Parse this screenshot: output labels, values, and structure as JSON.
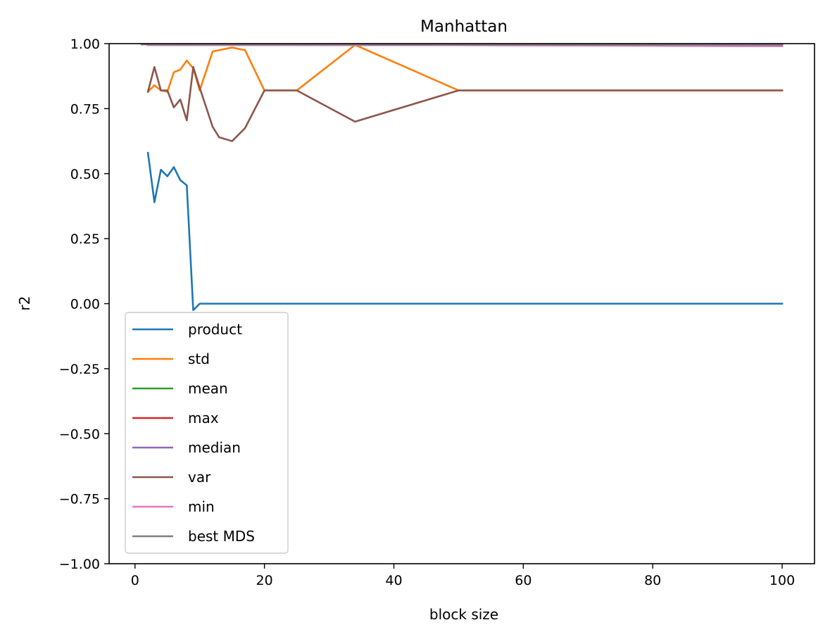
{
  "chart_data": {
    "type": "line",
    "title": "Manhattan",
    "xlabel": "block size",
    "ylabel": "r2",
    "xlim": [
      -4,
      105
    ],
    "ylim": [
      -1.0,
      1.0
    ],
    "xticks": [
      0,
      20,
      40,
      60,
      80,
      100
    ],
    "xtick_labels": [
      "0",
      "20",
      "40",
      "60",
      "80",
      "100"
    ],
    "yticks": [
      -1.0,
      -0.75,
      -0.5,
      -0.25,
      0.0,
      0.25,
      0.5,
      0.75,
      1.0
    ],
    "ytick_labels": [
      "−1.00",
      "−0.75",
      "−0.50",
      "−0.25",
      "0.00",
      "0.25",
      "0.50",
      "0.75",
      "1.00"
    ],
    "grid": false,
    "legend_position": "lower-left",
    "series": [
      {
        "name": "product",
        "color": "#1f77b4",
        "x": [
          2,
          3,
          4,
          5,
          6,
          7,
          8,
          9,
          10,
          100
        ],
        "y": [
          0.58,
          0.39,
          0.515,
          0.49,
          0.525,
          0.475,
          0.455,
          -0.025,
          0.0,
          0.0
        ]
      },
      {
        "name": "std",
        "color": "#ff7f0e",
        "x": [
          2,
          3,
          4,
          5,
          6,
          7,
          8,
          9,
          10,
          12,
          15,
          17,
          20,
          25,
          34,
          50,
          100
        ],
        "y": [
          0.815,
          0.84,
          0.82,
          0.815,
          0.89,
          0.9,
          0.935,
          0.905,
          0.82,
          0.97,
          0.985,
          0.975,
          0.82,
          0.82,
          0.995,
          0.82,
          0.82
        ]
      },
      {
        "name": "mean",
        "color": "#2ca02c",
        "x": [
          2,
          100
        ],
        "y": [
          0.995,
          0.995
        ]
      },
      {
        "name": "max",
        "color": "#d62728",
        "x": [
          2,
          100
        ],
        "y": [
          0.995,
          0.995
        ]
      },
      {
        "name": "median",
        "color": "#9467bd",
        "x": [
          2,
          100
        ],
        "y": [
          0.995,
          0.993
        ]
      },
      {
        "name": "var",
        "color": "#8c564b",
        "x": [
          2,
          3,
          4,
          5,
          6,
          7,
          8,
          9,
          10,
          12,
          13,
          15,
          17,
          20,
          25,
          34,
          50,
          100
        ],
        "y": [
          0.815,
          0.91,
          0.82,
          0.82,
          0.755,
          0.785,
          0.705,
          0.91,
          0.83,
          0.68,
          0.64,
          0.625,
          0.675,
          0.82,
          0.82,
          0.7,
          0.82,
          0.82
        ]
      },
      {
        "name": "min",
        "color": "#e377c2",
        "x": [
          2,
          50,
          100
        ],
        "y": [
          0.995,
          0.994,
          0.99
        ]
      },
      {
        "name": "best MDS",
        "color": "#7f7f7f",
        "x": [
          1,
          100
        ],
        "y": [
          0.997,
          0.995
        ]
      }
    ]
  }
}
